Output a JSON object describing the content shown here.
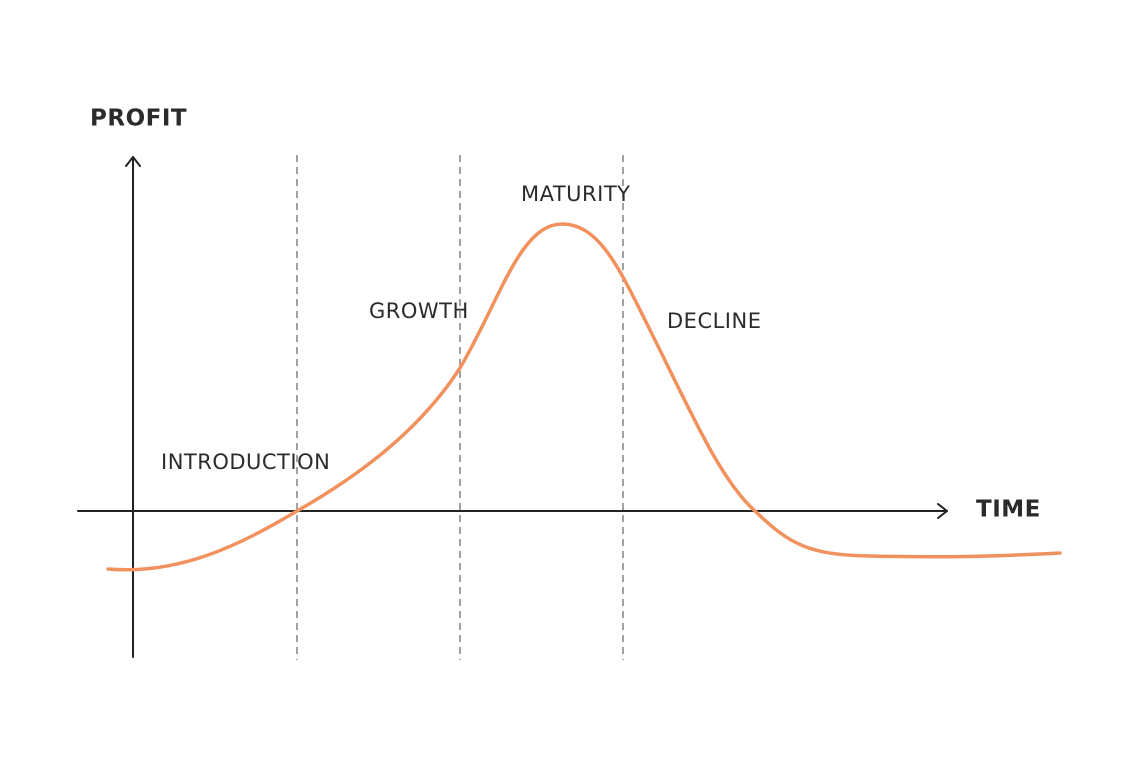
{
  "axes": {
    "y_label": "PROFIT",
    "x_label": "TIME"
  },
  "stages": [
    {
      "label": "INTRODUCTION"
    },
    {
      "label": "GROWTH"
    },
    {
      "label": "MATURITY"
    },
    {
      "label": "DECLINE"
    }
  ]
}
